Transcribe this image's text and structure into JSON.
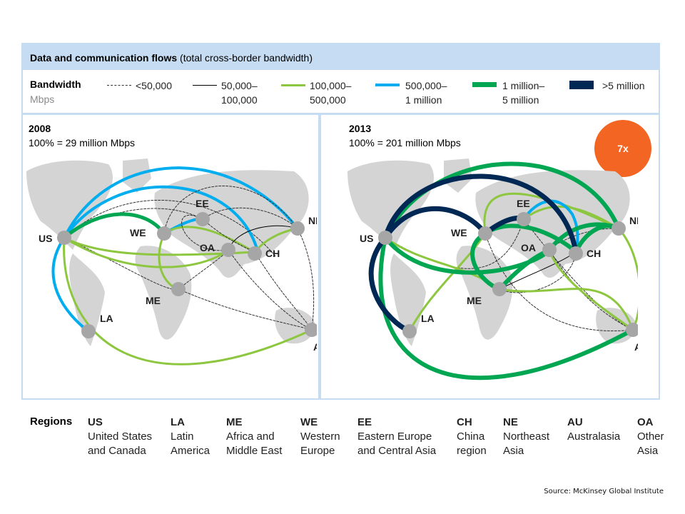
{
  "header": {
    "title_bold": "Data and communication flows",
    "title_rest": " (total cross-border bandwidth)"
  },
  "legend": {
    "label": "Bandwidth",
    "unit": "Mbps",
    "items": [
      {
        "line1": "<50,000",
        "line2": "",
        "color": "#333333",
        "style": "dashed"
      },
      {
        "line1": "50,000–",
        "line2": "100,000",
        "color": "#000000",
        "style": "thin"
      },
      {
        "line1": "100,000–",
        "line2": "500,000",
        "color": "#8dc63f",
        "style": "medium"
      },
      {
        "line1": "500,000–",
        "line2": "1 million",
        "color": "#00aeef",
        "style": "medium"
      },
      {
        "line1": "1 million–",
        "line2": "5 million",
        "color": "#00a651",
        "style": "thick"
      },
      {
        "line1": ">5 million",
        "line2": "",
        "color": "#002855",
        "style": "thick"
      }
    ]
  },
  "panel_2008": {
    "year": "2008",
    "total": "100% = 29 million Mbps"
  },
  "panel_2013": {
    "year": "2013",
    "total": "100% = 201 million Mbps",
    "growth_badge": "7x"
  },
  "node_labels": {
    "US": "US",
    "LA": "LA",
    "ME": "ME",
    "WE": "WE",
    "EE": "EE",
    "CH": "CH",
    "NE": "NE",
    "AU": "AU",
    "OA": "OA"
  },
  "regions": {
    "heading": "Regions",
    "items": [
      {
        "code": "US",
        "line1": "United States",
        "line2": "and Canada"
      },
      {
        "code": "LA",
        "line1": "Latin",
        "line2": "America"
      },
      {
        "code": "ME",
        "line1": "Africa and",
        "line2": "Middle East"
      },
      {
        "code": "WE",
        "line1": "Western",
        "line2": "Europe"
      },
      {
        "code": "EE",
        "line1": "Eastern Europe",
        "line2": "and Central Asia"
      },
      {
        "code": "CH",
        "line1": "China",
        "line2": "region"
      },
      {
        "code": "NE",
        "line1": "Northeast",
        "line2": "Asia"
      },
      {
        "code": "AU",
        "line1": "Australasia",
        "line2": ""
      },
      {
        "code": "OA",
        "line1": "Other",
        "line2": "Asia"
      }
    ]
  },
  "source": "Source: McKinsey Global Institute",
  "colors": {
    "dashed": "#333333",
    "thin": "#000000",
    "light_green": "#8dc63f",
    "blue": "#00aeef",
    "green": "#00a651",
    "navy": "#002855",
    "land": "#d4d4d4",
    "node": "#a6a6a6",
    "badge": "#f26522"
  }
}
